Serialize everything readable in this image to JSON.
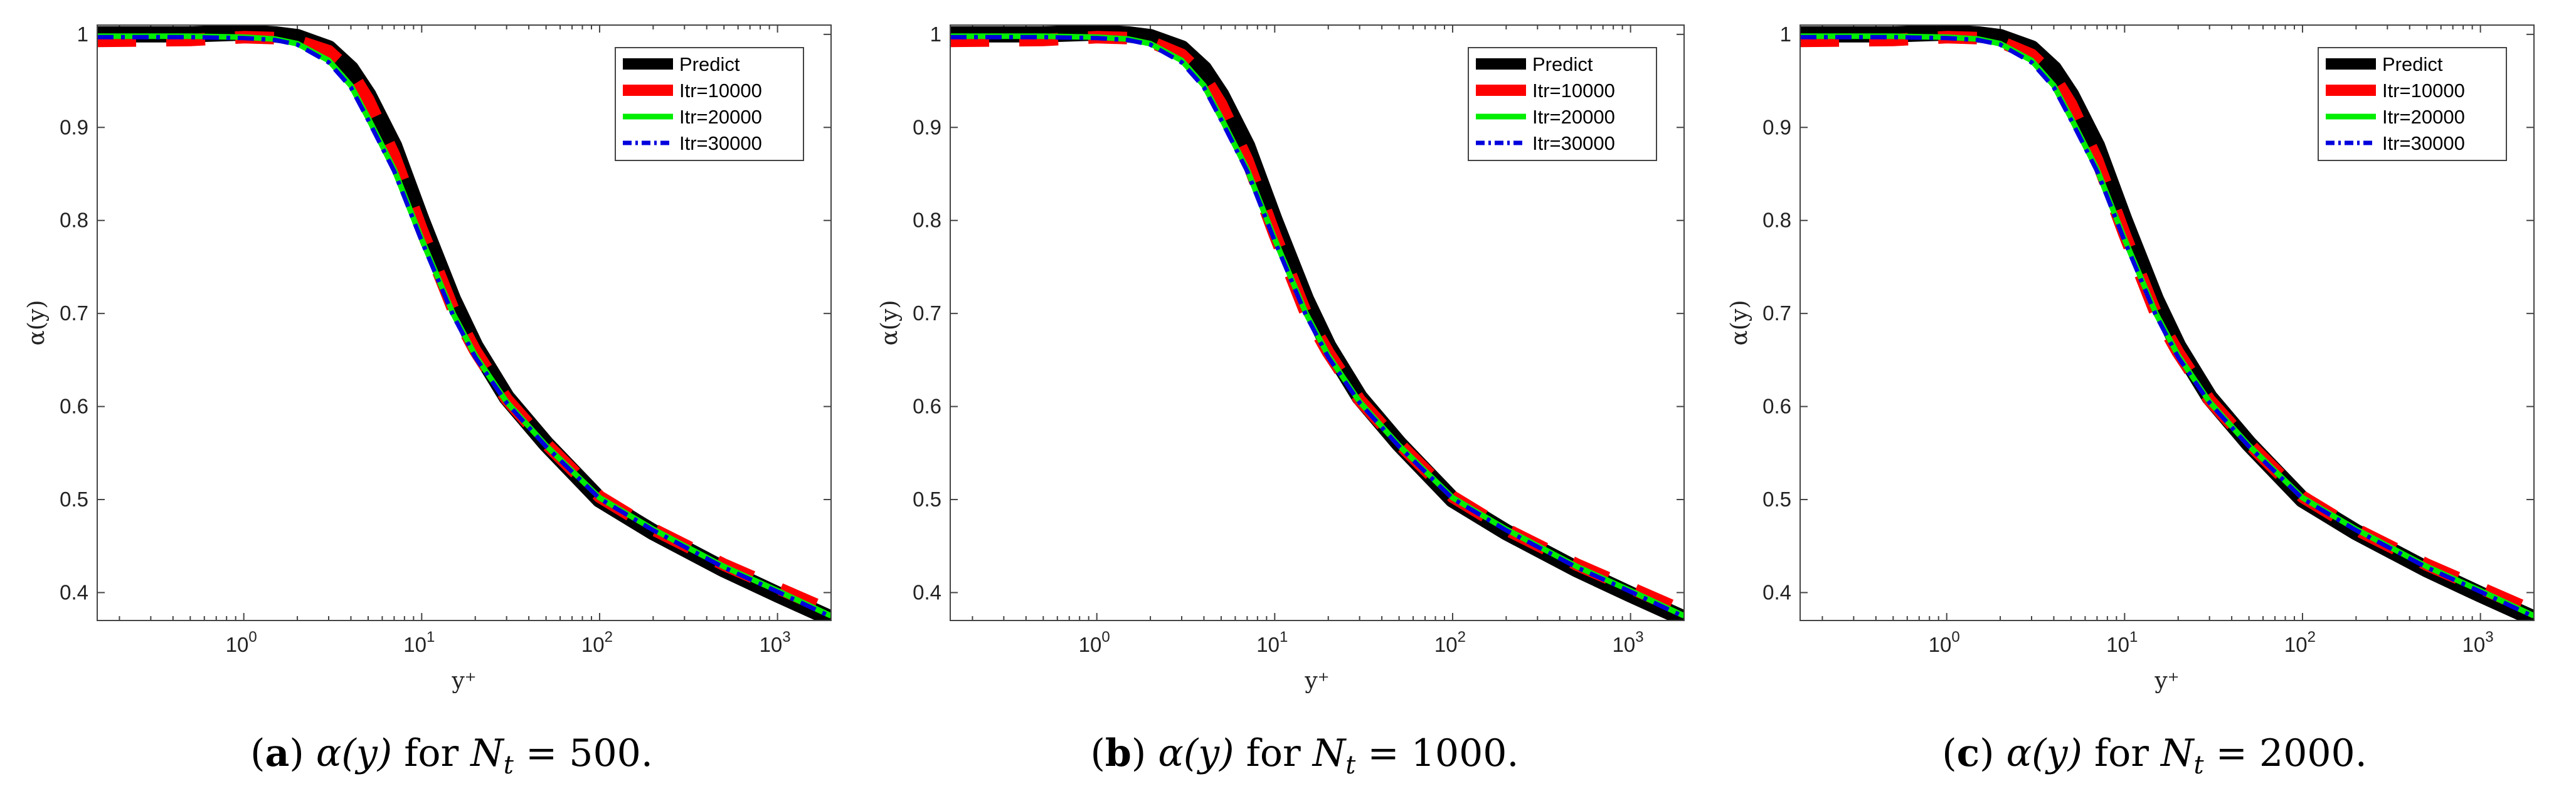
{
  "colors": {
    "predict": "#000000",
    "itr10000": "#ff0000",
    "itr20000": "#00ee00",
    "itr30000": "#0000dd",
    "axes": "#444444",
    "grid": "#c8c8c8"
  },
  "chart_data": [
    {
      "type": "line",
      "panel": "a",
      "caption": {
        "label": "(a)",
        "text": "α(y) for N",
        "subscript": "t",
        "value": "= 500."
      },
      "xlabel": "y⁺",
      "ylabel": "α(y)",
      "xscale": "log",
      "xlim": [
        0.15,
        2000
      ],
      "ylim": [
        0.37,
        1.01
      ],
      "xticks": [
        {
          "v": 1,
          "mant": "10",
          "exp": "0"
        },
        {
          "v": 10,
          "mant": "10",
          "exp": "1"
        },
        {
          "v": 100,
          "mant": "10",
          "exp": "2"
        },
        {
          "v": 1000,
          "mant": "10",
          "exp": "3"
        }
      ],
      "yticks": [
        {
          "v": 0.4,
          "label": "0.4"
        },
        {
          "v": 0.5,
          "label": "0.5"
        },
        {
          "v": 0.6,
          "label": "0.6"
        },
        {
          "v": 0.7,
          "label": "0.7"
        },
        {
          "v": 0.8,
          "label": "0.8"
        },
        {
          "v": 0.9,
          "label": "0.9"
        },
        {
          "v": 1.0,
          "label": "1"
        }
      ],
      "legend": {
        "placement": "top-right",
        "entries": [
          "Predict",
          "Itr=10000",
          "Itr=20000",
          "Itr=30000"
        ]
      },
      "series": [
        {
          "name": "Predict",
          "style": "solid-thick",
          "x": [
            0.15,
            0.5,
            1,
            1.5,
            2,
            3,
            4,
            5,
            7,
            10,
            15,
            20,
            30,
            50,
            100,
            200,
            500,
            1000,
            2000
          ],
          "y": [
            1.0,
            1.0,
            1.002,
            1.0,
            0.997,
            0.985,
            0.963,
            0.935,
            0.88,
            0.8,
            0.715,
            0.665,
            0.61,
            0.56,
            0.5,
            0.465,
            0.425,
            0.398,
            0.372
          ]
        },
        {
          "name": "Itr=10000",
          "style": "dashed-thick",
          "x": [
            0.15,
            0.5,
            1,
            1.5,
            2,
            3,
            4,
            5,
            7,
            10,
            15,
            20,
            30,
            50,
            100,
            200,
            500,
            1000,
            2000
          ],
          "y": [
            0.993,
            0.994,
            0.997,
            0.996,
            0.993,
            0.982,
            0.96,
            0.93,
            0.87,
            0.79,
            0.705,
            0.66,
            0.608,
            0.56,
            0.503,
            0.468,
            0.43,
            0.405,
            0.38
          ]
        },
        {
          "name": "Itr=20000",
          "style": "solid",
          "x": [
            0.15,
            0.5,
            1,
            1.5,
            2,
            3,
            4,
            5,
            7,
            10,
            15,
            20,
            30,
            50,
            100,
            200,
            500,
            1000,
            2000
          ],
          "y": [
            0.998,
            0.998,
            0.997,
            0.995,
            0.99,
            0.972,
            0.945,
            0.91,
            0.855,
            0.78,
            0.7,
            0.655,
            0.605,
            0.558,
            0.502,
            0.468,
            0.428,
            0.402,
            0.375
          ]
        },
        {
          "name": "Itr=30000",
          "style": "dashdot",
          "x": [
            0.15,
            0.5,
            1,
            1.5,
            2,
            3,
            4,
            5,
            7,
            10,
            15,
            20,
            30,
            50,
            100,
            200,
            500,
            1000,
            2000
          ],
          "y": [
            0.997,
            0.997,
            0.996,
            0.994,
            0.989,
            0.97,
            0.943,
            0.908,
            0.853,
            0.778,
            0.698,
            0.653,
            0.604,
            0.557,
            0.501,
            0.467,
            0.427,
            0.401,
            0.374
          ]
        }
      ]
    },
    {
      "type": "line",
      "panel": "b",
      "caption": {
        "label": "(b)",
        "text": "α(y) for N",
        "subscript": "t",
        "value": "= 1000."
      },
      "xlabel": "y⁺",
      "ylabel": "α(y)",
      "xscale": "log",
      "xlim": [
        0.15,
        2000
      ],
      "ylim": [
        0.37,
        1.01
      ],
      "xticks": [
        {
          "v": 1,
          "mant": "10",
          "exp": "0"
        },
        {
          "v": 10,
          "mant": "10",
          "exp": "1"
        },
        {
          "v": 100,
          "mant": "10",
          "exp": "2"
        },
        {
          "v": 1000,
          "mant": "10",
          "exp": "3"
        }
      ],
      "yticks": [
        {
          "v": 0.4,
          "label": "0.4"
        },
        {
          "v": 0.5,
          "label": "0.5"
        },
        {
          "v": 0.6,
          "label": "0.6"
        },
        {
          "v": 0.7,
          "label": "0.7"
        },
        {
          "v": 0.8,
          "label": "0.8"
        },
        {
          "v": 0.9,
          "label": "0.9"
        },
        {
          "v": 1.0,
          "label": "1"
        }
      ],
      "legend": {
        "placement": "top-right",
        "entries": [
          "Predict",
          "Itr=10000",
          "Itr=20000",
          "Itr=30000"
        ]
      },
      "series": [
        {
          "name": "Predict",
          "style": "solid-thick",
          "x": [
            0.15,
            0.5,
            1,
            1.5,
            2,
            3,
            4,
            5,
            7,
            10,
            15,
            20,
            30,
            50,
            100,
            200,
            500,
            1000,
            2000
          ],
          "y": [
            1.0,
            1.0,
            1.002,
            1.0,
            0.997,
            0.985,
            0.963,
            0.935,
            0.88,
            0.8,
            0.715,
            0.665,
            0.61,
            0.56,
            0.5,
            0.465,
            0.425,
            0.398,
            0.372
          ]
        },
        {
          "name": "Itr=10000",
          "style": "dashed-thick",
          "x": [
            0.15,
            0.5,
            1,
            1.5,
            2,
            3,
            4,
            5,
            7,
            10,
            15,
            20,
            30,
            50,
            100,
            200,
            500,
            1000,
            2000
          ],
          "y": [
            0.993,
            0.994,
            0.997,
            0.996,
            0.992,
            0.978,
            0.955,
            0.925,
            0.865,
            0.785,
            0.7,
            0.658,
            0.607,
            0.56,
            0.503,
            0.468,
            0.43,
            0.405,
            0.38
          ]
        },
        {
          "name": "Itr=20000",
          "style": "solid",
          "x": [
            0.15,
            0.5,
            1,
            1.5,
            2,
            3,
            4,
            5,
            7,
            10,
            15,
            20,
            30,
            50,
            100,
            200,
            500,
            1000,
            2000
          ],
          "y": [
            0.998,
            0.998,
            0.997,
            0.995,
            0.99,
            0.972,
            0.945,
            0.91,
            0.855,
            0.78,
            0.7,
            0.655,
            0.605,
            0.558,
            0.502,
            0.468,
            0.428,
            0.402,
            0.375
          ]
        },
        {
          "name": "Itr=30000",
          "style": "dashdot",
          "x": [
            0.15,
            0.5,
            1,
            1.5,
            2,
            3,
            4,
            5,
            7,
            10,
            15,
            20,
            30,
            50,
            100,
            200,
            500,
            1000,
            2000
          ],
          "y": [
            0.997,
            0.997,
            0.996,
            0.994,
            0.989,
            0.97,
            0.943,
            0.908,
            0.853,
            0.778,
            0.698,
            0.653,
            0.604,
            0.557,
            0.501,
            0.467,
            0.427,
            0.401,
            0.374
          ]
        }
      ]
    },
    {
      "type": "line",
      "panel": "c",
      "caption": {
        "label": "(c)",
        "text": "α(y) for N",
        "subscript": "t",
        "value": "= 2000."
      },
      "xlabel": "y⁺",
      "ylabel": "α(y)",
      "xscale": "log",
      "xlim": [
        0.15,
        2000
      ],
      "ylim": [
        0.37,
        1.01
      ],
      "xticks": [
        {
          "v": 1,
          "mant": "10",
          "exp": "0"
        },
        {
          "v": 10,
          "mant": "10",
          "exp": "1"
        },
        {
          "v": 100,
          "mant": "10",
          "exp": "2"
        },
        {
          "v": 1000,
          "mant": "10",
          "exp": "3"
        }
      ],
      "yticks": [
        {
          "v": 0.4,
          "label": "0.4"
        },
        {
          "v": 0.5,
          "label": "0.5"
        },
        {
          "v": 0.6,
          "label": "0.6"
        },
        {
          "v": 0.7,
          "label": "0.7"
        },
        {
          "v": 0.8,
          "label": "0.8"
        },
        {
          "v": 0.9,
          "label": "0.9"
        },
        {
          "v": 1.0,
          "label": "1"
        }
      ],
      "legend": {
        "placement": "top-right",
        "entries": [
          "Predict",
          "Itr=10000",
          "Itr=20000",
          "Itr=30000"
        ]
      },
      "series": [
        {
          "name": "Predict",
          "style": "solid-thick",
          "x": [
            0.15,
            0.5,
            1,
            1.5,
            2,
            3,
            4,
            5,
            7,
            10,
            15,
            20,
            30,
            50,
            100,
            200,
            500,
            1000,
            2000
          ],
          "y": [
            1.0,
            1.0,
            1.002,
            1.0,
            0.997,
            0.985,
            0.963,
            0.935,
            0.88,
            0.8,
            0.715,
            0.665,
            0.61,
            0.56,
            0.5,
            0.465,
            0.425,
            0.398,
            0.372
          ]
        },
        {
          "name": "Itr=10000",
          "style": "dashed-thick",
          "x": [
            0.15,
            0.5,
            1,
            1.5,
            2,
            3,
            4,
            5,
            7,
            10,
            15,
            20,
            30,
            50,
            100,
            200,
            500,
            1000,
            2000
          ],
          "y": [
            0.993,
            0.994,
            0.997,
            0.996,
            0.992,
            0.978,
            0.955,
            0.925,
            0.865,
            0.785,
            0.7,
            0.658,
            0.607,
            0.56,
            0.503,
            0.468,
            0.43,
            0.405,
            0.38
          ]
        },
        {
          "name": "Itr=20000",
          "style": "solid",
          "x": [
            0.15,
            0.5,
            1,
            1.5,
            2,
            3,
            4,
            5,
            7,
            10,
            15,
            20,
            30,
            50,
            100,
            200,
            500,
            1000,
            2000
          ],
          "y": [
            0.998,
            0.998,
            0.997,
            0.995,
            0.99,
            0.972,
            0.945,
            0.91,
            0.855,
            0.78,
            0.7,
            0.655,
            0.605,
            0.558,
            0.502,
            0.468,
            0.428,
            0.402,
            0.375
          ]
        },
        {
          "name": "Itr=30000",
          "style": "dashdot",
          "x": [
            0.15,
            0.5,
            1,
            1.5,
            2,
            3,
            4,
            5,
            7,
            10,
            15,
            20,
            30,
            50,
            100,
            200,
            500,
            1000,
            2000
          ],
          "y": [
            0.997,
            0.997,
            0.996,
            0.994,
            0.989,
            0.97,
            0.943,
            0.908,
            0.853,
            0.778,
            0.698,
            0.653,
            0.604,
            0.557,
            0.501,
            0.467,
            0.427,
            0.401,
            0.374
          ]
        }
      ]
    }
  ]
}
